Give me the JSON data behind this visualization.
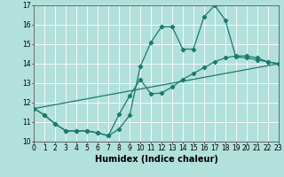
{
  "xlabel": "Humidex (Indice chaleur)",
  "bg_color": "#b2e0db",
  "grid_color": "#ffffff",
  "line_color": "#1a7a6e",
  "x_min": 0,
  "x_max": 23,
  "y_min": 10,
  "y_max": 17,
  "curve1_x": [
    0,
    1,
    2,
    3,
    4,
    5,
    6,
    7,
    8,
    9,
    10,
    11,
    12,
    13,
    14,
    15,
    16,
    17,
    18,
    19,
    20,
    21,
    22,
    23
  ],
  "curve1_y": [
    11.7,
    11.35,
    10.9,
    10.55,
    10.55,
    10.55,
    10.45,
    10.3,
    10.65,
    11.35,
    13.85,
    15.1,
    15.9,
    15.9,
    14.75,
    14.75,
    16.4,
    17.0,
    16.25,
    14.35,
    14.3,
    14.2,
    14.1,
    14.0
  ],
  "curve2_x": [
    0,
    1,
    2,
    3,
    4,
    5,
    6,
    7,
    8,
    9,
    10,
    11,
    12,
    13,
    14,
    15,
    16,
    17,
    18,
    19,
    20,
    21,
    22,
    23
  ],
  "curve2_y": [
    11.7,
    11.35,
    10.9,
    10.55,
    10.55,
    10.55,
    10.45,
    10.3,
    11.4,
    12.35,
    13.2,
    12.45,
    12.5,
    12.8,
    13.2,
    13.5,
    13.8,
    14.1,
    14.3,
    14.4,
    14.4,
    14.3,
    14.1,
    14.0
  ],
  "curve3_x": [
    0,
    23
  ],
  "curve3_y": [
    11.7,
    14.0
  ],
  "marker": "D",
  "markersize": 2.2,
  "linewidth": 0.9,
  "tick_fontsize": 5.5,
  "label_fontsize": 7
}
